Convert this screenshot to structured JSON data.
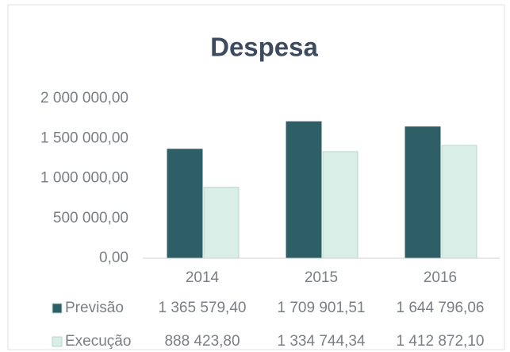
{
  "chart_data": {
    "type": "bar",
    "title": "Despesa",
    "categories": [
      "2014",
      "2015",
      "2016"
    ],
    "series": [
      {
        "name": "Previsão",
        "color": "#2f5f66",
        "values": [
          1365579.4,
          1709901.51,
          1644796.06
        ],
        "value_labels": [
          "1 365 579,40",
          "1 709 901,51",
          "1 644 796,06"
        ]
      },
      {
        "name": "Execução",
        "color": "#d9eee6",
        "values": [
          888423.8,
          1334744.34,
          1412872.1
        ],
        "value_labels": [
          "888 423,80",
          "1 334 744,34",
          "1 412 872,10"
        ]
      }
    ],
    "ylim": [
      0,
      2000000
    ],
    "yticks": [
      {
        "value": 0,
        "label": "0,00"
      },
      {
        "value": 500000,
        "label": "500 000,00"
      },
      {
        "value": 1000000,
        "label": "1 000 000,00"
      },
      {
        "value": 1500000,
        "label": "1 500 000,00"
      },
      {
        "value": 2000000,
        "label": "2 000 000,00"
      }
    ],
    "grid": false
  }
}
